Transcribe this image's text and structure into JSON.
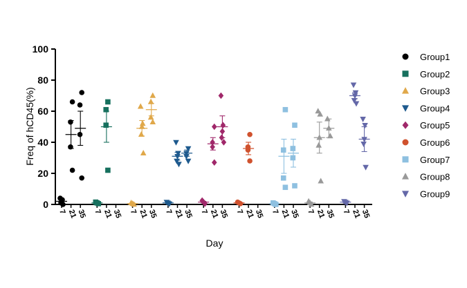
{
  "chart_data": {
    "type": "scatter",
    "xlabel": "Day",
    "ylabel": "Freq of hCD45(%)",
    "ylim": [
      0,
      100
    ],
    "yticks": [
      "0",
      "20",
      "40",
      "60",
      "80",
      "100"
    ],
    "days": [
      "7",
      "21",
      "35"
    ],
    "grid": false,
    "legend_position": "right",
    "series": [
      {
        "name": "Group1",
        "color": "#000000",
        "marker": "circle",
        "values": {
          "7": [
            0,
            1,
            2,
            3,
            4
          ],
          "21": [
            22,
            37,
            53,
            66
          ],
          "35": [
            17,
            45,
            64,
            72
          ]
        },
        "mean": {
          "7": 2,
          "21": 45,
          "35": 49
        },
        "err": {
          "7": 1,
          "21": 9,
          "35": 11
        }
      },
      {
        "name": "Group2",
        "color": "#17705e",
        "marker": "square",
        "values": {
          "7": [
            0.5,
            1,
            1.5
          ],
          "21": [
            22,
            51,
            61,
            66
          ]
        },
        "mean": {
          "7": 1,
          "21": 50
        },
        "err": {
          "7": 0.5,
          "21": 10
        }
      },
      {
        "name": "Group3",
        "color": "#e0a84a",
        "marker": "triangle-up",
        "values": {
          "7": [
            0,
            0.5,
            1
          ],
          "21": [
            33,
            45,
            50,
            52,
            63
          ],
          "35": [
            53,
            56,
            66,
            70
          ]
        },
        "mean": {
          "7": 0.5,
          "21": 49,
          "35": 61
        },
        "err": {
          "7": 0.5,
          "21": 5,
          "35": 4
        }
      },
      {
        "name": "Group4",
        "color": "#1e5a8e",
        "marker": "triangle-down",
        "values": {
          "7": [
            0.5,
            1,
            1.5
          ],
          "21": [
            26,
            28,
            31,
            33,
            40
          ],
          "35": [
            28,
            31,
            33,
            36
          ]
        },
        "mean": {
          "7": 1,
          "21": 31,
          "35": 33
        },
        "err": {
          "7": 0.5,
          "21": 2.5,
          "35": 2
        }
      },
      {
        "name": "Group5",
        "color": "#a0286a",
        "marker": "diamond",
        "values": {
          "7": [
            0.5,
            1.5,
            2.5
          ],
          "21": [
            27,
            37,
            40,
            50
          ],
          "35": [
            40,
            43,
            47,
            51,
            70
          ]
        },
        "mean": {
          "7": 1.5,
          "21": 39,
          "35": 50
        },
        "err": {
          "7": 0.5,
          "21": 4,
          "35": 7
        }
      },
      {
        "name": "Group6",
        "color": "#d0522e",
        "marker": "circle",
        "values": {
          "7": [
            0.5,
            1,
            1.5
          ],
          "21": [
            28,
            35,
            37,
            45
          ]
        },
        "mean": {
          "7": 1,
          "21": 36
        },
        "err": {
          "7": 0.5,
          "21": 4
        }
      },
      {
        "name": "Group7",
        "color": "#8ec0e0",
        "marker": "square",
        "values": {
          "7": [
            0,
            0.5,
            1
          ],
          "21": [
            11,
            17,
            35,
            61
          ],
          "35": [
            12,
            30,
            36,
            51
          ]
        },
        "mean": {
          "7": 0.5,
          "21": 31,
          "35": 33
        },
        "err": {
          "7": 0.5,
          "21": 11,
          "35": 9
        }
      },
      {
        "name": "Group8",
        "color": "#999999",
        "marker": "triangle-up",
        "values": {
          "7": [
            0,
            1,
            2
          ],
          "21": [
            15,
            38,
            43,
            58,
            60
          ],
          "35": [
            44,
            49,
            55
          ]
        },
        "mean": {
          "7": 1,
          "21": 43,
          "35": 49
        },
        "err": {
          "7": 0.5,
          "21": 10,
          "35": 6
        }
      },
      {
        "name": "Group9",
        "color": "#6468a8",
        "marker": "triangle-down",
        "values": {
          "7": [
            1,
            1.5,
            2
          ],
          "21": [
            65,
            67,
            70,
            72,
            77
          ],
          "35": [
            24,
            39,
            42,
            51,
            55
          ]
        },
        "mean": {
          "7": 1.5,
          "21": 70,
          "35": 42
        },
        "err": {
          "7": 0.5,
          "21": 2,
          "35": 8
        }
      }
    ]
  }
}
